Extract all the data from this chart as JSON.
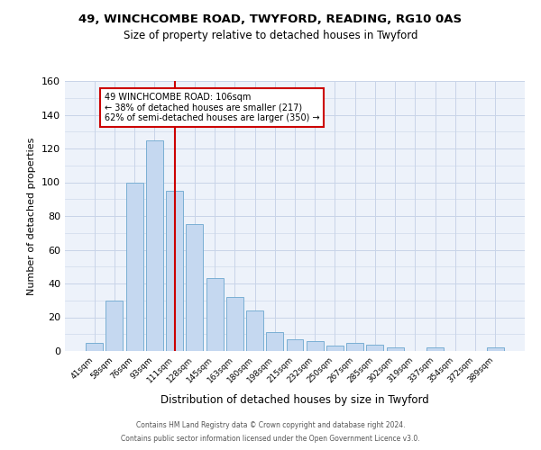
{
  "title1": "49, WINCHCOMBE ROAD, TWYFORD, READING, RG10 0AS",
  "title2": "Size of property relative to detached houses in Twyford",
  "xlabel": "Distribution of detached houses by size in Twyford",
  "ylabel": "Number of detached properties",
  "bin_labels": [
    "41sqm",
    "58sqm",
    "76sqm",
    "93sqm",
    "111sqm",
    "128sqm",
    "145sqm",
    "163sqm",
    "180sqm",
    "198sqm",
    "215sqm",
    "232sqm",
    "250sqm",
    "267sqm",
    "285sqm",
    "302sqm",
    "319sqm",
    "337sqm",
    "354sqm",
    "372sqm",
    "389sqm"
  ],
  "bar_values": [
    5,
    30,
    100,
    125,
    95,
    75,
    43,
    32,
    24,
    11,
    7,
    6,
    3,
    5,
    4,
    2,
    0,
    2,
    0,
    0,
    2
  ],
  "bar_color": "#c5d8f0",
  "bar_edge_color": "#7aafd4",
  "bg_color": "#edf2fa",
  "grid_color": "#c8d4e8",
  "vline_x": 4,
  "vline_color": "#cc0000",
  "annotation_title": "49 WINCHCOMBE ROAD: 106sqm",
  "annotation_line1": "← 38% of detached houses are smaller (217)",
  "annotation_line2": "62% of semi-detached houses are larger (350) →",
  "annotation_box_color": "#ffffff",
  "annotation_border_color": "#cc0000",
  "ylim": [
    0,
    160
  ],
  "yticks": [
    0,
    20,
    40,
    60,
    80,
    100,
    120,
    140,
    160
  ],
  "footnote1": "Contains HM Land Registry data © Crown copyright and database right 2024.",
  "footnote2": "Contains public sector information licensed under the Open Government Licence v3.0."
}
